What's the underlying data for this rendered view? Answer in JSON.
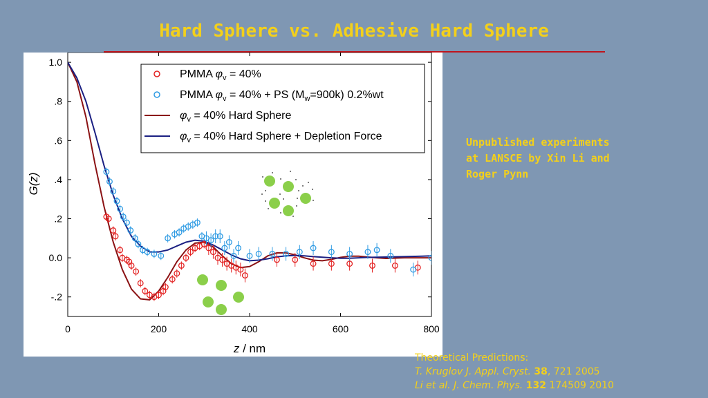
{
  "slide": {
    "title": "Hard Sphere vs. Adhesive Hard Sphere",
    "notes": [
      "Unpublished experiments",
      "at LANSCE by Xin Li and",
      "Roger Pynn"
    ],
    "refs": {
      "heading": "Theoretical Predictions:",
      "ref1": {
        "authors": "T. Kruglov",
        "journal": "J. Appl. Cryst.",
        "volume": "38",
        "rest": ", 721 2005"
      },
      "ref2": {
        "authors": "Li et al.",
        "journal": "J. Chem. Phys.",
        "volume": "132",
        "rest": " 174509 2010"
      }
    }
  },
  "chart_data": {
    "type": "scatter",
    "xlabel_var": "z",
    "xlabel_unit": " / nm",
    "ylabel": "G(z)",
    "xlim": [
      0,
      800
    ],
    "ylim": [
      -0.3,
      1.05
    ],
    "x_ticks": [
      0,
      200,
      400,
      600,
      800
    ],
    "x_tick_labels": [
      "0",
      "200",
      "400",
      "600",
      "800"
    ],
    "y_ticks": [
      1.0,
      0.8,
      0.6,
      0.4,
      0.2,
      0.0,
      -0.2
    ],
    "y_tick_labels": [
      "1.0",
      ".8",
      ".6",
      ".4",
      ".2",
      "0.0",
      "-.2"
    ],
    "legend_position": "top-right",
    "legend": [
      {
        "kind": "marker",
        "color": "#e32222",
        "pre": "PMMA ",
        "phi": "φ",
        "sub": "v",
        "post": " = 40%"
      },
      {
        "kind": "marker",
        "color": "#2f9be3",
        "pre": "PMMA ",
        "phi": "φ",
        "sub": "v",
        "post": " = 40% + PS (M",
        "sub2": "w",
        "post2": "=900k) 0.2%wt"
      },
      {
        "kind": "line",
        "color": "#8b1214",
        "pre": "",
        "phi": "φ",
        "sub": "v",
        "post": " = 40% Hard Sphere"
      },
      {
        "kind": "line",
        "color": "#1a1f82",
        "pre": "",
        "phi": "φ",
        "sub": "v",
        "post": " = 40% Hard Sphere + Depletion Force"
      }
    ],
    "series": [
      {
        "name": "PMMA φv = 40%",
        "kind": "points",
        "color": "#e32222",
        "points": [
          [
            85,
            0.21
          ],
          [
            90,
            0.2
          ],
          [
            100,
            0.14
          ],
          [
            105,
            0.11
          ],
          [
            115,
            0.04
          ],
          [
            120,
            0.0
          ],
          [
            130,
            -0.01
          ],
          [
            135,
            -0.02
          ],
          [
            140,
            -0.04
          ],
          [
            150,
            -0.07
          ],
          [
            160,
            -0.13
          ],
          [
            170,
            -0.17
          ],
          [
            180,
            -0.19
          ],
          [
            190,
            -0.2
          ],
          [
            200,
            -0.19
          ],
          [
            210,
            -0.17
          ],
          [
            215,
            -0.15
          ],
          [
            230,
            -0.11
          ],
          [
            240,
            -0.08
          ],
          [
            250,
            -0.04
          ],
          [
            260,
            0.0
          ],
          [
            270,
            0.03
          ],
          [
            280,
            0.05
          ],
          [
            290,
            0.06
          ],
          [
            300,
            0.07
          ],
          [
            310,
            0.05
          ],
          [
            320,
            0.03
          ],
          [
            330,
            0.0
          ],
          [
            340,
            -0.01
          ],
          [
            350,
            -0.03
          ],
          [
            360,
            -0.04
          ],
          [
            370,
            -0.05
          ],
          [
            380,
            -0.06
          ],
          [
            390,
            -0.09
          ],
          [
            460,
            -0.01
          ],
          [
            500,
            -0.01
          ],
          [
            540,
            -0.03
          ],
          [
            580,
            -0.03
          ],
          [
            620,
            -0.03
          ],
          [
            670,
            -0.04
          ],
          [
            720,
            -0.04
          ],
          [
            770,
            -0.05
          ]
        ]
      },
      {
        "name": "PMMA φv = 40% + PS (Mw=900k) 0.2%wt",
        "kind": "points",
        "color": "#2f9be3",
        "points": [
          [
            85,
            0.44
          ],
          [
            92,
            0.39
          ],
          [
            100,
            0.34
          ],
          [
            108,
            0.29
          ],
          [
            115,
            0.25
          ],
          [
            122,
            0.21
          ],
          [
            130,
            0.18
          ],
          [
            138,
            0.14
          ],
          [
            148,
            0.1
          ],
          [
            155,
            0.07
          ],
          [
            165,
            0.04
          ],
          [
            175,
            0.03
          ],
          [
            190,
            0.02
          ],
          [
            205,
            0.01
          ],
          [
            220,
            0.1
          ],
          [
            235,
            0.12
          ],
          [
            245,
            0.13
          ],
          [
            255,
            0.15
          ],
          [
            265,
            0.16
          ],
          [
            275,
            0.17
          ],
          [
            285,
            0.18
          ],
          [
            295,
            0.11
          ],
          [
            305,
            0.1
          ],
          [
            315,
            0.09
          ],
          [
            325,
            0.11
          ],
          [
            335,
            0.11
          ],
          [
            345,
            0.05
          ],
          [
            355,
            0.08
          ],
          [
            365,
            0.01
          ],
          [
            375,
            0.05
          ],
          [
            400,
            0.01
          ],
          [
            420,
            0.02
          ],
          [
            450,
            0.02
          ],
          [
            480,
            0.02
          ],
          [
            510,
            0.03
          ],
          [
            540,
            0.05
          ],
          [
            580,
            0.03
          ],
          [
            620,
            0.02
          ],
          [
            660,
            0.03
          ],
          [
            680,
            0.04
          ],
          [
            710,
            0.01
          ],
          [
            760,
            -0.06
          ],
          [
            800,
            0.0
          ]
        ]
      },
      {
        "name": "φv = 40% Hard Sphere",
        "kind": "line",
        "color": "#8b1214",
        "points": [
          [
            0,
            1.0
          ],
          [
            20,
            0.9
          ],
          [
            40,
            0.72
          ],
          [
            60,
            0.48
          ],
          [
            80,
            0.26
          ],
          [
            100,
            0.08
          ],
          [
            120,
            -0.06
          ],
          [
            140,
            -0.16
          ],
          [
            160,
            -0.21
          ],
          [
            180,
            -0.215
          ],
          [
            200,
            -0.17
          ],
          [
            220,
            -0.1
          ],
          [
            240,
            -0.02
          ],
          [
            260,
            0.04
          ],
          [
            280,
            0.075
          ],
          [
            300,
            0.08
          ],
          [
            320,
            0.055
          ],
          [
            340,
            0.01
          ],
          [
            360,
            -0.03
          ],
          [
            380,
            -0.05
          ],
          [
            400,
            -0.045
          ],
          [
            420,
            -0.02
          ],
          [
            440,
            0.01
          ],
          [
            460,
            0.025
          ],
          [
            480,
            0.025
          ],
          [
            500,
            0.015
          ],
          [
            520,
            0.0
          ],
          [
            540,
            -0.012
          ],
          [
            560,
            -0.015
          ],
          [
            580,
            -0.008
          ],
          [
            600,
            0.002
          ],
          [
            620,
            0.008
          ],
          [
            640,
            0.008
          ],
          [
            660,
            0.004
          ],
          [
            680,
            0.0
          ],
          [
            700,
            -0.003
          ],
          [
            740,
            0.0
          ],
          [
            780,
            0.0
          ],
          [
            800,
            0.0
          ]
        ]
      },
      {
        "name": "φv = 40% Hard Sphere + Depletion Force",
        "kind": "line",
        "color": "#1a1f82",
        "points": [
          [
            0,
            1.0
          ],
          [
            20,
            0.92
          ],
          [
            40,
            0.8
          ],
          [
            60,
            0.64
          ],
          [
            80,
            0.47
          ],
          [
            100,
            0.32
          ],
          [
            120,
            0.2
          ],
          [
            140,
            0.11
          ],
          [
            160,
            0.06
          ],
          [
            180,
            0.03
          ],
          [
            200,
            0.03
          ],
          [
            220,
            0.04
          ],
          [
            240,
            0.06
          ],
          [
            260,
            0.08
          ],
          [
            280,
            0.09
          ],
          [
            300,
            0.085
          ],
          [
            320,
            0.065
          ],
          [
            340,
            0.04
          ],
          [
            360,
            0.015
          ],
          [
            380,
            -0.005
          ],
          [
            400,
            -0.015
          ],
          [
            420,
            -0.012
          ],
          [
            440,
            -0.005
          ],
          [
            460,
            0.005
          ],
          [
            480,
            0.01
          ],
          [
            500,
            0.012
          ],
          [
            520,
            0.01
          ],
          [
            540,
            0.006
          ],
          [
            560,
            0.003
          ],
          [
            580,
            0.0
          ],
          [
            600,
            -0.002
          ],
          [
            620,
            -0.002
          ],
          [
            640,
            0.0
          ],
          [
            660,
            0.002
          ],
          [
            680,
            0.003
          ],
          [
            700,
            0.004
          ],
          [
            740,
            0.006
          ],
          [
            780,
            0.008
          ],
          [
            800,
            0.01
          ]
        ]
      }
    ],
    "inset_cluster_color": "#8bcf4a"
  }
}
